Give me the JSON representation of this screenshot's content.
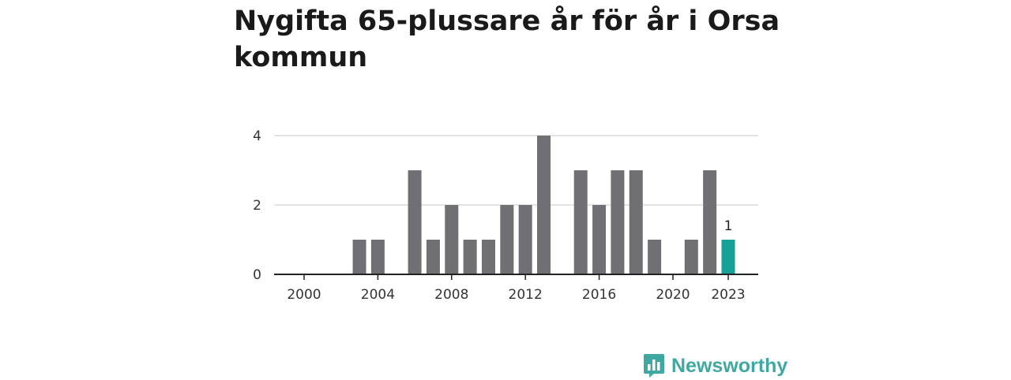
{
  "colors": {
    "bar": "#707074",
    "highlight": "#16a096",
    "grid": "#dcdcdc",
    "axis": "#222222",
    "brand": "#3fa9a1"
  },
  "brand": {
    "name": "Newsworthy",
    "icon": "bar-chart-logo-icon"
  },
  "chart_data": {
    "type": "bar",
    "title": "Nygifta 65-plussare år för år i Orsa kommun",
    "xlabel": "",
    "ylabel": "",
    "ylim": [
      0,
      4
    ],
    "yticks": [
      "0",
      "2",
      "4"
    ],
    "xticks": [
      "2000",
      "2004",
      "2008",
      "2012",
      "2016",
      "2020",
      "2023"
    ],
    "categories": [
      "2000",
      "2001",
      "2002",
      "2003",
      "2004",
      "2005",
      "2006",
      "2007",
      "2008",
      "2009",
      "2010",
      "2011",
      "2012",
      "2013",
      "2014",
      "2015",
      "2016",
      "2017",
      "2018",
      "2019",
      "2020",
      "2021",
      "2022",
      "2023"
    ],
    "values": [
      0,
      0,
      0,
      1,
      1,
      0,
      3,
      1,
      2,
      1,
      1,
      2,
      2,
      4,
      0,
      3,
      2,
      3,
      3,
      1,
      0,
      1,
      3,
      1
    ],
    "highlight": {
      "category": "2023",
      "label": "1"
    }
  }
}
